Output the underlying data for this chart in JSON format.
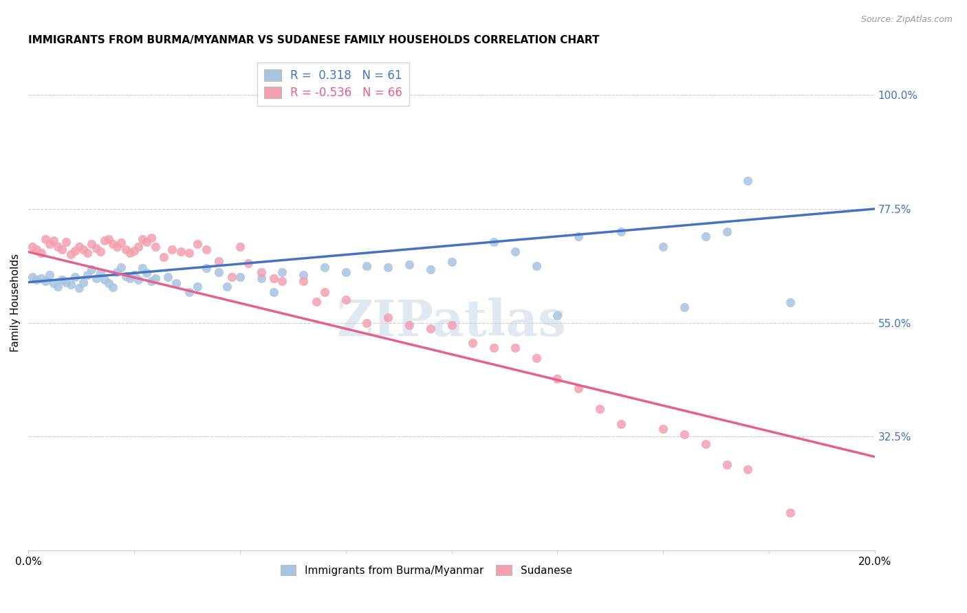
{
  "title": "IMMIGRANTS FROM BURMA/MYANMAR VS SUDANESE FAMILY HOUSEHOLDS CORRELATION CHART",
  "source": "Source: ZipAtlas.com",
  "ylabel": "Family Households",
  "ytick_vals": [
    0.325,
    0.55,
    0.775,
    1.0
  ],
  "ytick_labels": [
    "32.5%",
    "55.0%",
    "77.5%",
    "100.0%"
  ],
  "xtick_positions": [
    0.0,
    0.025,
    0.05,
    0.075,
    0.1,
    0.125,
    0.15,
    0.175,
    0.2
  ],
  "xtick_labels": [
    "0.0%",
    "",
    "",
    "",
    "",
    "",
    "",
    "",
    "20.0%"
  ],
  "legend_r_blue": "0.318",
  "legend_n_blue": "61",
  "legend_r_pink": "-0.536",
  "legend_n_pink": "66",
  "blue_color": "#a8c4e0",
  "pink_color": "#f4a0b0",
  "blue_line_color": "#4472c4",
  "pink_line_color": "#e8608a",
  "blue_scatter": [
    [
      0.001,
      0.64
    ],
    [
      0.002,
      0.635
    ],
    [
      0.003,
      0.638
    ],
    [
      0.004,
      0.632
    ],
    [
      0.005,
      0.645
    ],
    [
      0.006,
      0.628
    ],
    [
      0.007,
      0.622
    ],
    [
      0.008,
      0.635
    ],
    [
      0.009,
      0.63
    ],
    [
      0.01,
      0.625
    ],
    [
      0.011,
      0.64
    ],
    [
      0.012,
      0.618
    ],
    [
      0.013,
      0.63
    ],
    [
      0.014,
      0.645
    ],
    [
      0.015,
      0.655
    ],
    [
      0.016,
      0.638
    ],
    [
      0.017,
      0.648
    ],
    [
      0.018,
      0.635
    ],
    [
      0.019,
      0.628
    ],
    [
      0.02,
      0.62
    ],
    [
      0.021,
      0.65
    ],
    [
      0.022,
      0.66
    ],
    [
      0.023,
      0.642
    ],
    [
      0.024,
      0.638
    ],
    [
      0.025,
      0.645
    ],
    [
      0.026,
      0.635
    ],
    [
      0.027,
      0.658
    ],
    [
      0.028,
      0.648
    ],
    [
      0.029,
      0.632
    ],
    [
      0.03,
      0.638
    ],
    [
      0.033,
      0.64
    ],
    [
      0.035,
      0.628
    ],
    [
      0.038,
      0.61
    ],
    [
      0.04,
      0.622
    ],
    [
      0.042,
      0.658
    ],
    [
      0.045,
      0.65
    ],
    [
      0.047,
      0.622
    ],
    [
      0.05,
      0.64
    ],
    [
      0.055,
      0.638
    ],
    [
      0.058,
      0.61
    ],
    [
      0.06,
      0.65
    ],
    [
      0.065,
      0.645
    ],
    [
      0.07,
      0.66
    ],
    [
      0.075,
      0.65
    ],
    [
      0.08,
      0.662
    ],
    [
      0.085,
      0.66
    ],
    [
      0.09,
      0.665
    ],
    [
      0.095,
      0.655
    ],
    [
      0.1,
      0.67
    ],
    [
      0.11,
      0.71
    ],
    [
      0.115,
      0.69
    ],
    [
      0.12,
      0.662
    ],
    [
      0.125,
      0.565
    ],
    [
      0.13,
      0.72
    ],
    [
      0.14,
      0.73
    ],
    [
      0.15,
      0.7
    ],
    [
      0.155,
      0.58
    ],
    [
      0.16,
      0.72
    ],
    [
      0.165,
      0.73
    ],
    [
      0.17,
      0.83
    ],
    [
      0.18,
      0.59
    ]
  ],
  "pink_scatter": [
    [
      0.001,
      0.7
    ],
    [
      0.002,
      0.695
    ],
    [
      0.003,
      0.688
    ],
    [
      0.004,
      0.715
    ],
    [
      0.005,
      0.705
    ],
    [
      0.006,
      0.712
    ],
    [
      0.007,
      0.7
    ],
    [
      0.008,
      0.695
    ],
    [
      0.009,
      0.71
    ],
    [
      0.01,
      0.685
    ],
    [
      0.011,
      0.692
    ],
    [
      0.012,
      0.7
    ],
    [
      0.013,
      0.695
    ],
    [
      0.014,
      0.688
    ],
    [
      0.015,
      0.705
    ],
    [
      0.016,
      0.698
    ],
    [
      0.017,
      0.69
    ],
    [
      0.018,
      0.712
    ],
    [
      0.019,
      0.715
    ],
    [
      0.02,
      0.705
    ],
    [
      0.021,
      0.7
    ],
    [
      0.022,
      0.708
    ],
    [
      0.023,
      0.695
    ],
    [
      0.024,
      0.688
    ],
    [
      0.025,
      0.692
    ],
    [
      0.026,
      0.7
    ],
    [
      0.027,
      0.715
    ],
    [
      0.028,
      0.71
    ],
    [
      0.029,
      0.718
    ],
    [
      0.03,
      0.7
    ],
    [
      0.032,
      0.68
    ],
    [
      0.034,
      0.695
    ],
    [
      0.036,
      0.69
    ],
    [
      0.038,
      0.688
    ],
    [
      0.04,
      0.705
    ],
    [
      0.042,
      0.695
    ],
    [
      0.045,
      0.672
    ],
    [
      0.048,
      0.64
    ],
    [
      0.05,
      0.7
    ],
    [
      0.052,
      0.668
    ],
    [
      0.055,
      0.65
    ],
    [
      0.058,
      0.638
    ],
    [
      0.06,
      0.632
    ],
    [
      0.065,
      0.632
    ],
    [
      0.068,
      0.592
    ],
    [
      0.07,
      0.61
    ],
    [
      0.075,
      0.595
    ],
    [
      0.08,
      0.55
    ],
    [
      0.085,
      0.56
    ],
    [
      0.09,
      0.545
    ],
    [
      0.095,
      0.538
    ],
    [
      0.1,
      0.545
    ],
    [
      0.105,
      0.51
    ],
    [
      0.11,
      0.5
    ],
    [
      0.115,
      0.5
    ],
    [
      0.12,
      0.48
    ],
    [
      0.125,
      0.44
    ],
    [
      0.13,
      0.42
    ],
    [
      0.135,
      0.38
    ],
    [
      0.14,
      0.35
    ],
    [
      0.15,
      0.34
    ],
    [
      0.155,
      0.33
    ],
    [
      0.16,
      0.31
    ],
    [
      0.165,
      0.27
    ],
    [
      0.17,
      0.26
    ],
    [
      0.18,
      0.175
    ]
  ],
  "watermark": "ZIPatlas",
  "blue_trend_x": [
    0.0,
    0.2
  ],
  "blue_trend_y": [
    0.63,
    0.775
  ],
  "pink_trend_x": [
    0.0,
    0.2
  ],
  "pink_trend_y": [
    0.69,
    0.285
  ],
  "ylim": [
    0.1,
    1.08
  ],
  "xlim": [
    0.0,
    0.2
  ]
}
